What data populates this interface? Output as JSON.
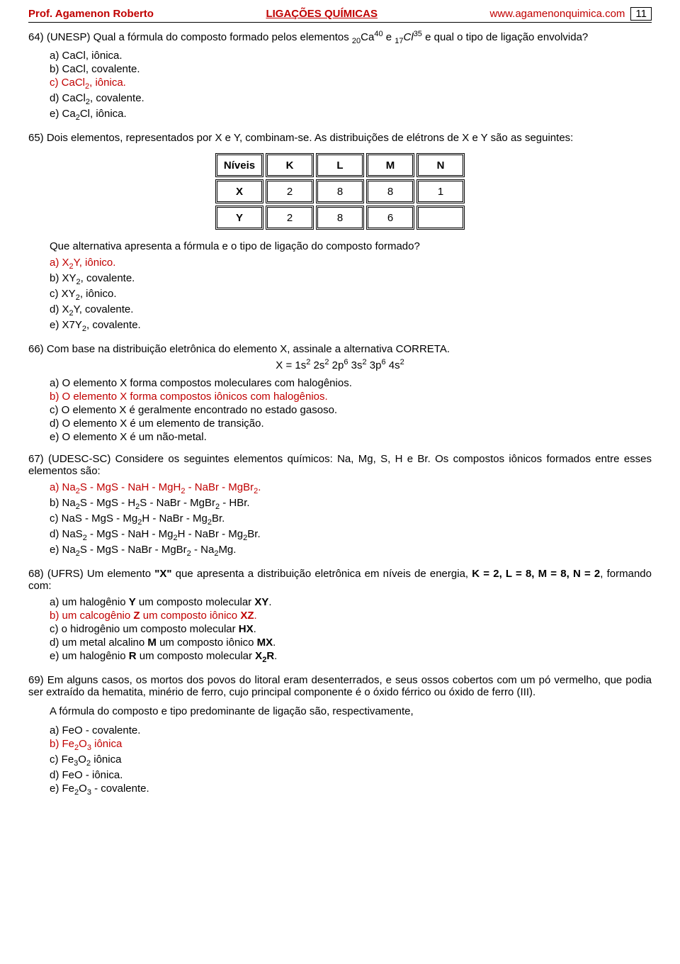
{
  "header": {
    "left": "Prof. Agamenon Roberto",
    "center": "LIGAÇÕES QUÍMICAS",
    "right": "www.agamenonquimica.com",
    "pageNumber": "11"
  },
  "q64": {
    "text_before": "64) (UNESP) Qual a fórmula do composto formado pelos elementos ",
    "ca_pre": "20",
    "ca_sym": "Ca",
    "ca_sup": "40",
    "and": " e ",
    "cl_pre": "17",
    "cl_sym": "Cl",
    "cl_sup": "35",
    "text_after": " e qual o tipo de ligação envolvida?",
    "a": "a)  CaCl, iônica.",
    "b": "b)  CaCl, covalente.",
    "c_pre": "c)  CaCl",
    "c_sub": "2",
    "c_post": ", iônica.",
    "d_pre": "d)  CaCl",
    "d_sub": "2",
    "d_post": ", covalente.",
    "e_pre": "e)  Ca",
    "e_sub1": "2",
    "e_mid": "Cl, iônica."
  },
  "q65": {
    "text": "65) Dois elementos, representados por X e Y, combinam-se. As distribuições de elétrons de X e Y são as seguintes:",
    "table": {
      "headers": [
        "Níveis",
        "K",
        "L",
        "M",
        "N"
      ],
      "rows": [
        [
          "X",
          "2",
          "8",
          "8",
          "1"
        ],
        [
          "Y",
          "2",
          "8",
          "6",
          ""
        ]
      ]
    },
    "q": "Que alternativa apresenta a fórmula e o tipo de ligação do composto formado?",
    "a_pre": "a)  X",
    "a_sub": "2",
    "a_post": "Y, iônico.",
    "b_pre": "b)  XY",
    "b_sub": "2",
    "b_post": ", covalente.",
    "c_pre": "c)  XY",
    "c_sub": "2",
    "c_post": ", iônico.",
    "d_pre": "d)  X",
    "d_sub": "2",
    "d_post": "Y, covalente.",
    "e_pre": "e)  X7Y",
    "e_sub": "2",
    "e_post": ", covalente."
  },
  "q66": {
    "text": "66) Com base na distribuição eletrônica do elemento X, assinale a alternativa CORRETA.",
    "eq_pre": "X = 1s",
    "eq": "2",
    "eq2": " 2s",
    "eq3": "2",
    "eq4": " 2p",
    "eq5": "6",
    "eq6": " 3s",
    "eq7": "2",
    "eq8": " 3p",
    "eq9": "6",
    "eq10": " 4s",
    "eq11": "2",
    "a": "a) O elemento X forma compostos moleculares com halogênios.",
    "b": "b) O elemento X forma compostos iônicos com halogênios.",
    "c": "c) O elemento X é geralmente encontrado no estado gasoso.",
    "d": "d) O elemento X é um elemento de transição.",
    "e": "e) O elemento X é um não-metal."
  },
  "q67": {
    "text": "67) (UDESC-SC) Considere os seguintes elementos químicos: Na, Mg, S, H e Br. Os compostos iônicos formados entre esses elementos são:",
    "a_pre": "a)  Na",
    "a": "S - MgS - NaH - MgH",
    "a2": " - NaBr - MgBr",
    "a3": ".",
    "b_pre": "b)  Na",
    "b": "S - MgS - H",
    "b2": "S - NaBr - MgBr",
    "b3": " - HBr.",
    "c": "c)  NaS - MgS - Mg",
    "c2": "H - NaBr - Mg",
    "c3": "Br.",
    "d_pre": "d)  NaS",
    "d": " - MgS - NaH - Mg",
    "d2": "H - NaBr - Mg",
    "d3": "Br.",
    "e_pre": "e)  Na",
    "e": "S - MgS - NaBr - MgBr",
    "e2": " - Na",
    "e3": "Mg."
  },
  "q68": {
    "text_a": "68) (UFRS) Um elemento ",
    "text_x": "\"X\"",
    "text_b": " que apresenta a distribuição eletrônica em níveis de energia, ",
    "text_k": "K = 2, L = 8, M = 8, N = 2",
    "text_c": ", formando com:",
    "a_pre": "a)   um halogênio ",
    "a_b": "Y",
    "a_mid": " um composto molecular ",
    "a_b2": "XY",
    "a_post": ".",
    "b_pre": "b)   um calcogênio ",
    "b_b": "Z",
    "b_mid": " um composto iônico ",
    "b_b2": "XZ",
    "b_post": ".",
    "c_pre": "c)   o hidrogênio um composto molecular ",
    "c_b": "HX",
    "c_post": ".",
    "d_pre": "d)   um metal alcalino ",
    "d_b": "M",
    "d_mid": " um composto iônico ",
    "d_b2": "MX",
    "d_post": ".",
    "e_pre": "e)   um halogênio ",
    "e_b": "R",
    "e_mid": " um composto molecular ",
    "e_b2": "X",
    "e_sub": "2",
    "e_b3": "R",
    "e_post": "."
  },
  "q69": {
    "text": "69)  Em alguns casos, os mortos dos povos do litoral eram desenterrados, e seus ossos cobertos com um pó vermelho, que podia ser extraído da hematita, minério de ferro, cujo principal componente é o óxido férrico ou óxido de ferro (III).",
    "sub": "A fórmula do composto e tipo predominante de ligação são, respectivamente,",
    "a": "a) FeO - covalente.",
    "b_pre": "b) Fe",
    "b_s1": "2",
    "b_mid": "O",
    "b_s2": "3",
    "b_post": " iônica",
    "c_pre": "c) Fe",
    "c_s1": "3",
    "c_mid": "O",
    "c_s2": "2",
    "c_post": " iônica",
    "d": "d) FeO - iônica.",
    "e_pre": "e) Fe",
    "e_s1": "2",
    "e_mid": "O",
    "e_s2": "3",
    "e_post": " - covalente."
  }
}
